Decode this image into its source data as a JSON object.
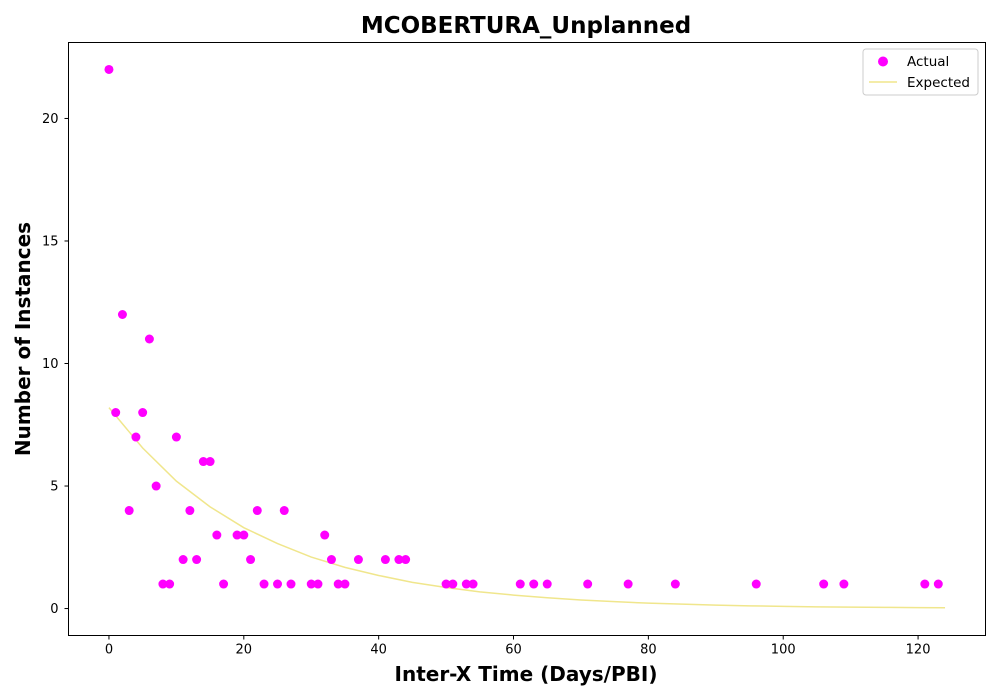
{
  "chart_data": {
    "type": "scatter",
    "title": "MCOBERTURA_Unplanned",
    "xlabel": "Inter-X Time (Days/PBI)",
    "ylabel": "Number of Instances",
    "xlim": [
      -6,
      130
    ],
    "ylim": [
      -1.1,
      23.1
    ],
    "xticks": [
      0,
      20,
      40,
      60,
      80,
      100,
      120
    ],
    "yticks": [
      0,
      5,
      10,
      15,
      20
    ],
    "grid": false,
    "legend_position": "top-right",
    "series": [
      {
        "name": "Actual",
        "kind": "scatter",
        "color": "#ff00ff",
        "points": [
          [
            0,
            22
          ],
          [
            1,
            8
          ],
          [
            2,
            12
          ],
          [
            3,
            4
          ],
          [
            4,
            7
          ],
          [
            5,
            8
          ],
          [
            6,
            11
          ],
          [
            7,
            5
          ],
          [
            8,
            1
          ],
          [
            9,
            1
          ],
          [
            10,
            7
          ],
          [
            11,
            2
          ],
          [
            12,
            4
          ],
          [
            13,
            2
          ],
          [
            14,
            6
          ],
          [
            15,
            6
          ],
          [
            16,
            3
          ],
          [
            17,
            1
          ],
          [
            19,
            3
          ],
          [
            20,
            3
          ],
          [
            21,
            2
          ],
          [
            22,
            4
          ],
          [
            23,
            1
          ],
          [
            25,
            1
          ],
          [
            26,
            4
          ],
          [
            27,
            1
          ],
          [
            30,
            1
          ],
          [
            31,
            1
          ],
          [
            32,
            3
          ],
          [
            33,
            2
          ],
          [
            34,
            1
          ],
          [
            35,
            1
          ],
          [
            37,
            2
          ],
          [
            41,
            2
          ],
          [
            43,
            2
          ],
          [
            44,
            2
          ],
          [
            50,
            1
          ],
          [
            51,
            1
          ],
          [
            53,
            1
          ],
          [
            54,
            1
          ],
          [
            61,
            1
          ],
          [
            63,
            1
          ],
          [
            65,
            1
          ],
          [
            71,
            1
          ],
          [
            77,
            1
          ],
          [
            84,
            1
          ],
          [
            96,
            1
          ],
          [
            106,
            1
          ],
          [
            109,
            1
          ],
          [
            121,
            1
          ],
          [
            123,
            1
          ]
        ]
      },
      {
        "name": "Expected",
        "kind": "line",
        "color": "#f0e68c",
        "points": [
          [
            0,
            8.2
          ],
          [
            5,
            6.55
          ],
          [
            10,
            5.2
          ],
          [
            15,
            4.15
          ],
          [
            20,
            3.3
          ],
          [
            25,
            2.65
          ],
          [
            30,
            2.1
          ],
          [
            35,
            1.68
          ],
          [
            40,
            1.35
          ],
          [
            45,
            1.07
          ],
          [
            50,
            0.86
          ],
          [
            55,
            0.68
          ],
          [
            60,
            0.55
          ],
          [
            65,
            0.44
          ],
          [
            70,
            0.35
          ],
          [
            75,
            0.28
          ],
          [
            80,
            0.22
          ],
          [
            85,
            0.18
          ],
          [
            90,
            0.14
          ],
          [
            95,
            0.11
          ],
          [
            100,
            0.09
          ],
          [
            105,
            0.07
          ],
          [
            110,
            0.06
          ],
          [
            115,
            0.05
          ],
          [
            120,
            0.04
          ],
          [
            124,
            0.03
          ]
        ]
      }
    ]
  }
}
